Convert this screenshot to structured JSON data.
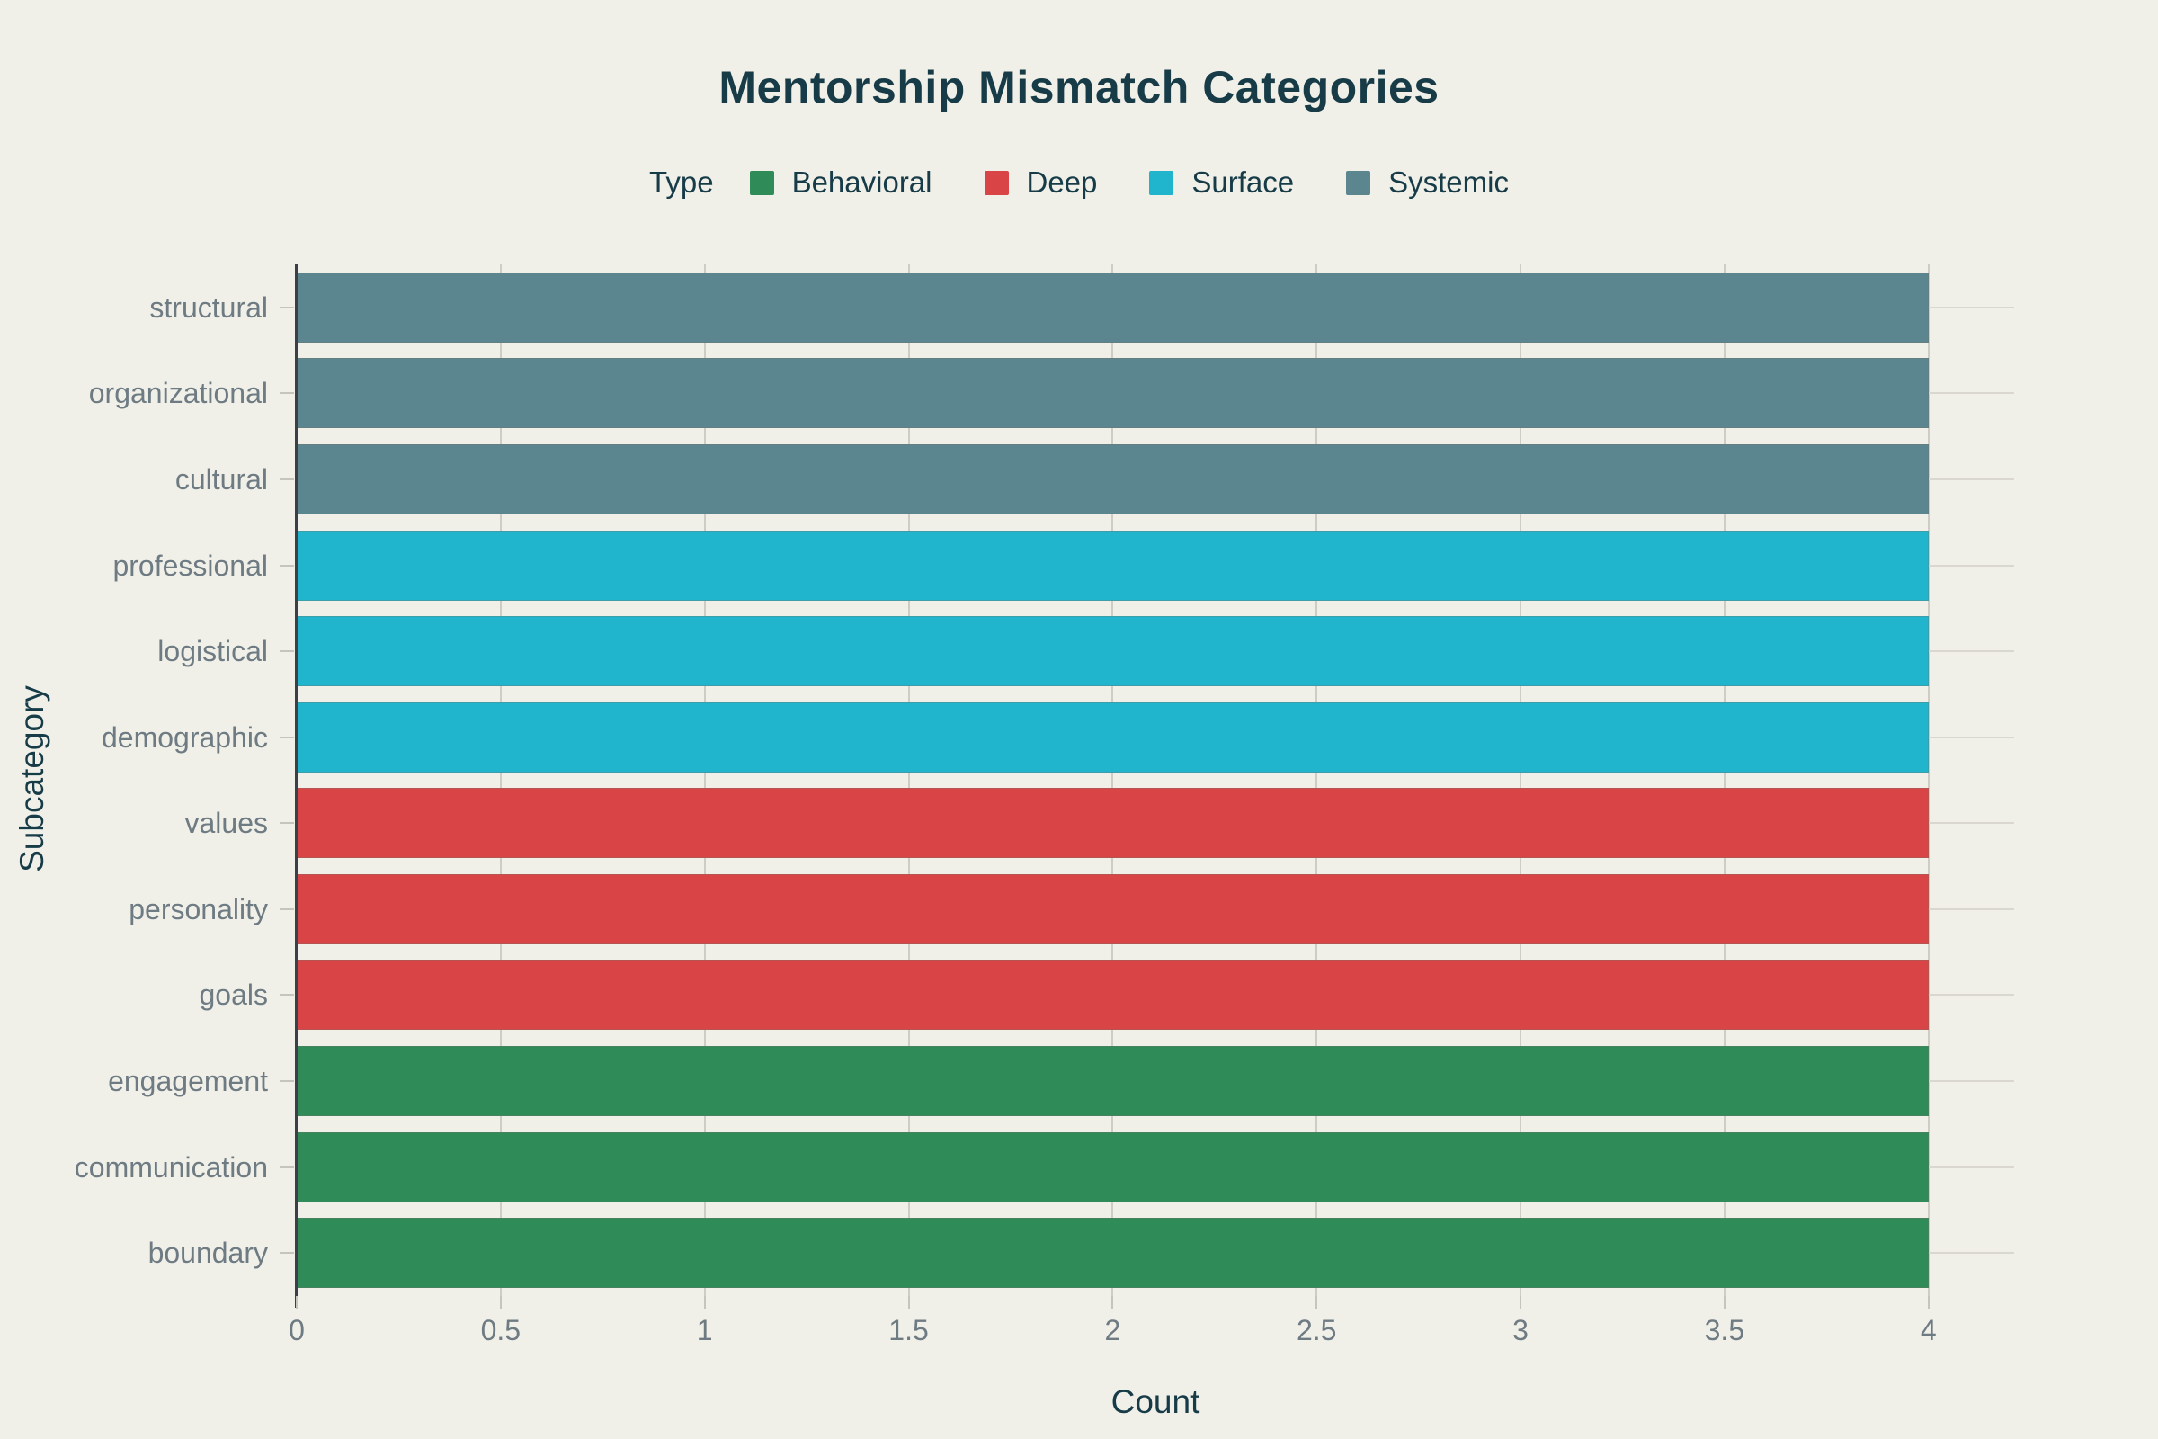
{
  "chart": {
    "title": "Mentorship Mismatch Categories",
    "xlabel": "Count",
    "ylabel": "Subcategory",
    "legend": {
      "title": "Type",
      "entries": [
        {
          "label": "Behavioral",
          "color": "#2f8b57"
        },
        {
          "label": "Deep",
          "color": "#d94546"
        },
        {
          "label": "Surface",
          "color": "#21b5cd"
        },
        {
          "label": "Systemic",
          "color": "#5b868f"
        }
      ]
    }
  },
  "colors": {
    "background": "#f0f0e9",
    "heading_text": "#173c48",
    "tick_text": "#6e7b83",
    "gridline_horizontal": "#d9d7cf",
    "gridline_vertical": "#cfccc5",
    "axis_line": "#3a4045",
    "tick_dash": "#c6c4bc"
  },
  "chart_data": {
    "type": "bar",
    "orientation": "horizontal",
    "title": "Mentorship Mismatch Categories",
    "xlabel": "Count",
    "ylabel": "Subcategory",
    "legend_title": "Type",
    "legend_position": "top-center",
    "grid": true,
    "xlim": [
      0,
      4.21
    ],
    "xticks": [
      0,
      0.5,
      1,
      1.5,
      2,
      2.5,
      3,
      3.5,
      4
    ],
    "xtick_labels": [
      "0",
      "0.5",
      "1",
      "1.5",
      "2",
      "2.5",
      "3",
      "3.5",
      "4"
    ],
    "categories": [
      "structural",
      "organizational",
      "cultural",
      "professional",
      "logistical",
      "demographic",
      "values",
      "personality",
      "goals",
      "engagement",
      "communication",
      "boundary"
    ],
    "rows": [
      {
        "subcategory": "structural",
        "type": "Systemic",
        "count": 4
      },
      {
        "subcategory": "organizational",
        "type": "Systemic",
        "count": 4
      },
      {
        "subcategory": "cultural",
        "type": "Systemic",
        "count": 4
      },
      {
        "subcategory": "professional",
        "type": "Surface",
        "count": 4
      },
      {
        "subcategory": "logistical",
        "type": "Surface",
        "count": 4
      },
      {
        "subcategory": "demographic",
        "type": "Surface",
        "count": 4
      },
      {
        "subcategory": "values",
        "type": "Deep",
        "count": 4
      },
      {
        "subcategory": "personality",
        "type": "Deep",
        "count": 4
      },
      {
        "subcategory": "goals",
        "type": "Deep",
        "count": 4
      },
      {
        "subcategory": "engagement",
        "type": "Behavioral",
        "count": 4
      },
      {
        "subcategory": "communication",
        "type": "Behavioral",
        "count": 4
      },
      {
        "subcategory": "boundary",
        "type": "Behavioral",
        "count": 4
      }
    ],
    "type_colors": {
      "Behavioral": "#2f8b57",
      "Deep": "#d94546",
      "Surface": "#21b5cd",
      "Systemic": "#5b868f"
    },
    "series": [
      {
        "name": "Systemic",
        "color": "#5b868f",
        "categories": [
          "structural",
          "organizational",
          "cultural"
        ],
        "values": [
          4,
          4,
          4
        ]
      },
      {
        "name": "Surface",
        "color": "#21b5cd",
        "categories": [
          "professional",
          "logistical",
          "demographic"
        ],
        "values": [
          4,
          4,
          4
        ]
      },
      {
        "name": "Deep",
        "color": "#d94546",
        "categories": [
          "values",
          "personality",
          "goals"
        ],
        "values": [
          4,
          4,
          4
        ]
      },
      {
        "name": "Behavioral",
        "color": "#2f8b57",
        "categories": [
          "engagement",
          "communication",
          "boundary"
        ],
        "values": [
          4,
          4,
          4
        ]
      }
    ]
  }
}
